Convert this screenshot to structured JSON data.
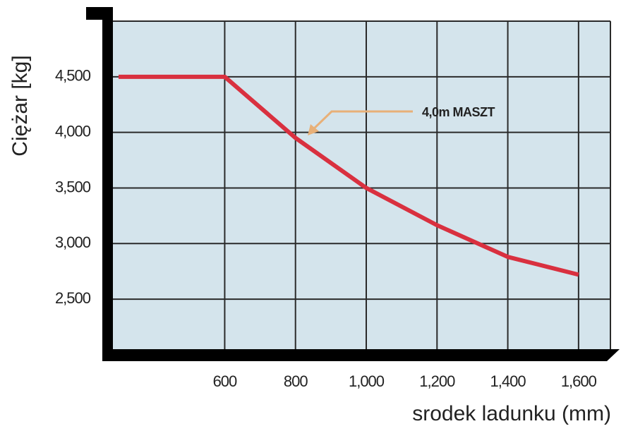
{
  "chart_data": {
    "type": "line",
    "x": [
      300,
      600,
      800,
      1000,
      1200,
      1400,
      1600
    ],
    "values": [
      4500,
      4500,
      3950,
      3500,
      3165,
      2880,
      2720
    ],
    "color": "#d9303f",
    "xlim": [
      300,
      1700
    ],
    "xticks": [
      600,
      800,
      {
        "value": 1000,
        "label": "1,000"
      },
      {
        "value": 1200,
        "label": "1,200"
      },
      {
        "value": 1400,
        "label": "1,400"
      },
      {
        "value": 1600,
        "label": "1,600"
      }
    ],
    "ylim": [
      2050,
      5000
    ],
    "yticks": [
      {
        "value": 2500,
        "label": "2,500"
      },
      {
        "value": 3000,
        "label": "3,000"
      },
      {
        "value": 3500,
        "label": "3,500"
      },
      {
        "value": 4000,
        "label": "4,000"
      },
      {
        "value": 4500,
        "label": "4,500"
      }
    ],
    "grid": true,
    "xlabel": "srodek ladunku (mm)",
    "ylabel": "Ciężar [kg]",
    "annotation": "4,0m MASZT"
  }
}
